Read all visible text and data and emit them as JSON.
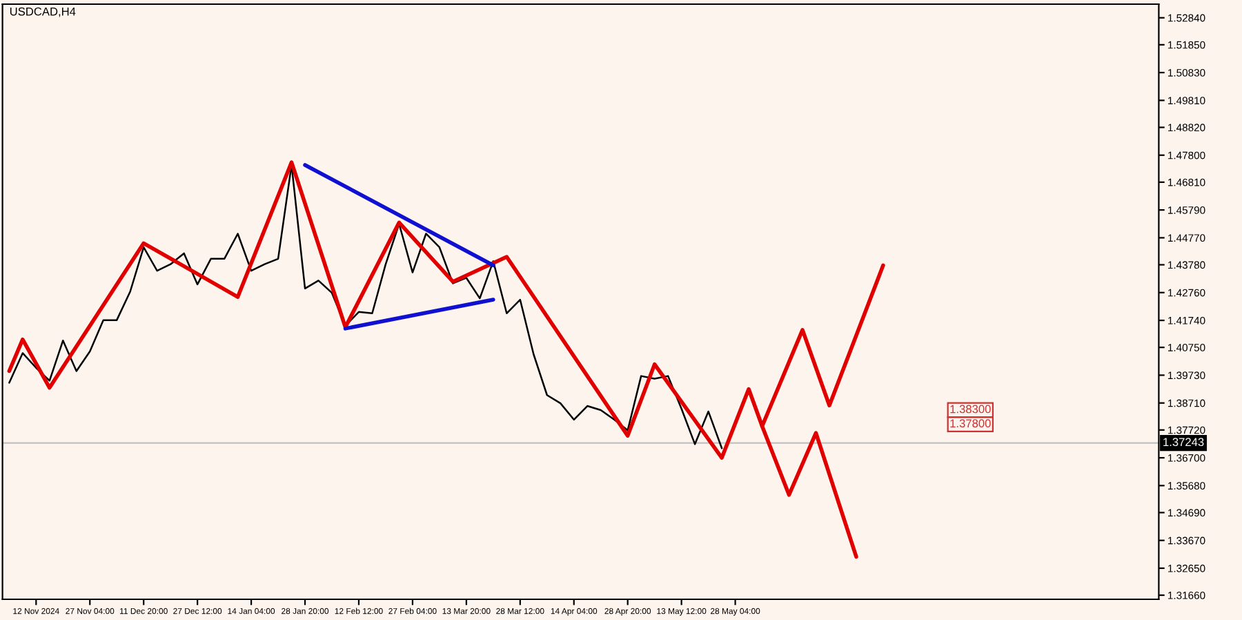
{
  "chart_data": {
    "type": "line",
    "title": "USDCAD,H4",
    "categories": [
      null,
      null,
      "12 Nov 2024",
      null,
      null,
      null,
      "27 Nov 04:00",
      null,
      null,
      null,
      "11 Dec 20:00",
      null,
      null,
      null,
      "27 Dec 12:00",
      null,
      null,
      null,
      "14 Jan 04:00",
      null,
      null,
      null,
      "28 Jan 20:00",
      null,
      null,
      null,
      "12 Feb 12:00",
      null,
      null,
      null,
      "27 Feb 04:00",
      null,
      null,
      null,
      "13 Mar 20:00",
      null,
      null,
      null,
      "28 Mar 12:00",
      null,
      null,
      null,
      "14 Apr 04:00",
      null,
      null,
      null,
      "28 Apr 20:00",
      null,
      null,
      null,
      "13 May 12:00",
      null,
      null,
      null,
      "28 May 04:00",
      null,
      null,
      null,
      null,
      null,
      null,
      null,
      null,
      null,
      null,
      null,
      null,
      null,
      null,
      null,
      null,
      null,
      null,
      null,
      null,
      null,
      null,
      null,
      null,
      null,
      null,
      null,
      null,
      null,
      null,
      null
    ],
    "ylim": [
      1.3151,
      1.5334
    ],
    "yticks": [
      {
        "value": 1.5284,
        "label": "1.52840"
      },
      {
        "value": 1.5185,
        "label": "1.51850"
      },
      {
        "value": 1.5083,
        "label": "1.50830"
      },
      {
        "value": 1.4981,
        "label": "1.49810"
      },
      {
        "value": 1.4882,
        "label": "1.48820"
      },
      {
        "value": 1.478,
        "label": "1.47800"
      },
      {
        "value": 1.4681,
        "label": "1.46810"
      },
      {
        "value": 1.4579,
        "label": "1.45790"
      },
      {
        "value": 1.4477,
        "label": "1.44770"
      },
      {
        "value": 1.4378,
        "label": "1.43780"
      },
      {
        "value": 1.4276,
        "label": "1.42760"
      },
      {
        "value": 1.4174,
        "label": "1.41740"
      },
      {
        "value": 1.4075,
        "label": "1.40750"
      },
      {
        "value": 1.3973,
        "label": "1.39730"
      },
      {
        "value": 1.3871,
        "label": "1.38710"
      },
      {
        "value": 1.3772,
        "label": "1.37720"
      },
      {
        "value": 1.367,
        "label": "1.36700"
      },
      {
        "value": 1.3568,
        "label": "1.35680"
      },
      {
        "value": 1.3469,
        "label": "1.34690"
      },
      {
        "value": 1.3367,
        "label": "1.33670"
      },
      {
        "value": 1.3265,
        "label": "1.32650"
      },
      {
        "value": 1.3166,
        "label": "1.31660"
      }
    ],
    "legend": false,
    "marker": "none",
    "series": [
      {
        "color": "#000000",
        "values": [
          1.3945,
          1.4054,
          1.4,
          1.3953,
          1.41,
          1.3988,
          1.406,
          1.4175,
          1.4175,
          1.428,
          1.4442,
          1.4356,
          1.438,
          1.442,
          1.4306,
          1.44,
          1.44,
          1.4492,
          1.4356,
          1.438,
          1.44,
          1.4744,
          1.4291,
          1.432,
          1.4275,
          1.4154,
          1.4205,
          1.42,
          1.438,
          1.4528,
          1.435,
          1.4492,
          1.4442,
          1.431,
          1.433,
          1.4255,
          1.4391,
          1.42,
          1.425,
          1.405,
          1.39,
          1.387,
          1.381,
          1.386,
          1.3845,
          1.381,
          1.3771,
          1.397,
          1.396,
          1.397,
          1.385,
          1.372,
          1.384,
          1.3705,
          null,
          null,
          null,
          null,
          null,
          null,
          null,
          null,
          null,
          null,
          null,
          null,
          null,
          null,
          null,
          null,
          null,
          null,
          null,
          null,
          null,
          null,
          null,
          null,
          null,
          null,
          null,
          null,
          null,
          null,
          null,
          null
        ]
      },
      {
        "color": "#e00000",
        "values": [
          1.3988,
          1.4104,
          null,
          1.3927,
          null,
          null,
          null,
          null,
          null,
          null,
          1.4457,
          null,
          null,
          null,
          null,
          null,
          null,
          1.426,
          null,
          null,
          null,
          1.4754,
          null,
          null,
          null,
          1.4149,
          null,
          null,
          null,
          1.4533,
          null,
          null,
          null,
          1.4316,
          null,
          null,
          null,
          1.4407,
          null,
          null,
          null,
          null,
          null,
          null,
          null,
          null,
          1.3751,
          null,
          1.4013,
          null,
          null,
          null,
          null,
          1.367,
          null,
          1.3922,
          1.3786,
          null,
          null,
          1.4139,
          null,
          1.3862,
          null,
          null,
          null,
          1.4376,
          null,
          null,
          null,
          null,
          null,
          null,
          null,
          null,
          null,
          null,
          null,
          null,
          null,
          null,
          null,
          null,
          null,
          null,
          null,
          null
        ]
      },
      {
        "color": "#e00000",
        "values": [
          null,
          null,
          null,
          null,
          null,
          null,
          null,
          null,
          null,
          null,
          null,
          null,
          null,
          null,
          null,
          null,
          null,
          null,
          null,
          null,
          null,
          null,
          null,
          null,
          null,
          null,
          null,
          null,
          null,
          null,
          null,
          null,
          null,
          null,
          null,
          null,
          null,
          null,
          null,
          null,
          null,
          null,
          null,
          null,
          null,
          null,
          null,
          null,
          null,
          null,
          null,
          null,
          null,
          null,
          null,
          null,
          1.3786,
          null,
          1.3534,
          null,
          1.3761,
          null,
          null,
          1.3307,
          null,
          null,
          null,
          null,
          null,
          null,
          null,
          null,
          null,
          null,
          null,
          null,
          null,
          null,
          null,
          null,
          null,
          null,
          null,
          null,
          null,
          null
        ]
      },
      {
        "color": "#1010d0",
        "values": [
          null,
          null,
          null,
          null,
          null,
          null,
          null,
          null,
          null,
          null,
          null,
          null,
          null,
          null,
          null,
          null,
          null,
          null,
          null,
          null,
          null,
          null,
          1.4744,
          null,
          null,
          null,
          null,
          null,
          null,
          null,
          null,
          null,
          null,
          null,
          null,
          null,
          1.4376,
          null,
          null,
          null,
          null,
          null,
          null,
          null,
          null,
          null,
          null,
          null,
          null,
          null,
          null,
          null,
          null,
          null,
          null,
          null,
          null,
          null,
          null,
          null,
          null,
          null,
          null,
          null,
          null,
          null,
          null,
          null,
          null,
          null,
          null,
          null,
          null,
          null,
          null,
          null,
          null,
          null,
          null,
          null,
          null,
          null,
          null,
          null,
          null,
          null
        ]
      },
      {
        "color": "#1010d0",
        "values": [
          null,
          null,
          null,
          null,
          null,
          null,
          null,
          null,
          null,
          null,
          null,
          null,
          null,
          null,
          null,
          null,
          null,
          null,
          null,
          null,
          null,
          null,
          null,
          null,
          null,
          1.4144,
          null,
          null,
          null,
          null,
          null,
          null,
          null,
          null,
          null,
          null,
          1.425,
          null,
          null,
          null,
          null,
          null,
          null,
          null,
          null,
          null,
          null,
          null,
          null,
          null,
          null,
          null,
          null,
          null,
          null,
          null,
          null,
          null,
          null,
          null,
          null,
          null,
          null,
          null,
          null,
          null,
          null,
          null,
          null,
          null,
          null,
          null,
          null,
          null,
          null,
          null,
          null,
          null,
          null,
          null,
          null,
          null,
          null,
          null,
          null,
          null
        ]
      }
    ],
    "ref_lines": [
      {
        "axis": "y",
        "value": 1.37243,
        "label": "1.37243",
        "color": "#c0c0c0",
        "line_style": "solid"
      }
    ],
    "annotations": [
      "1.38300",
      "1.37800"
    ]
  }
}
